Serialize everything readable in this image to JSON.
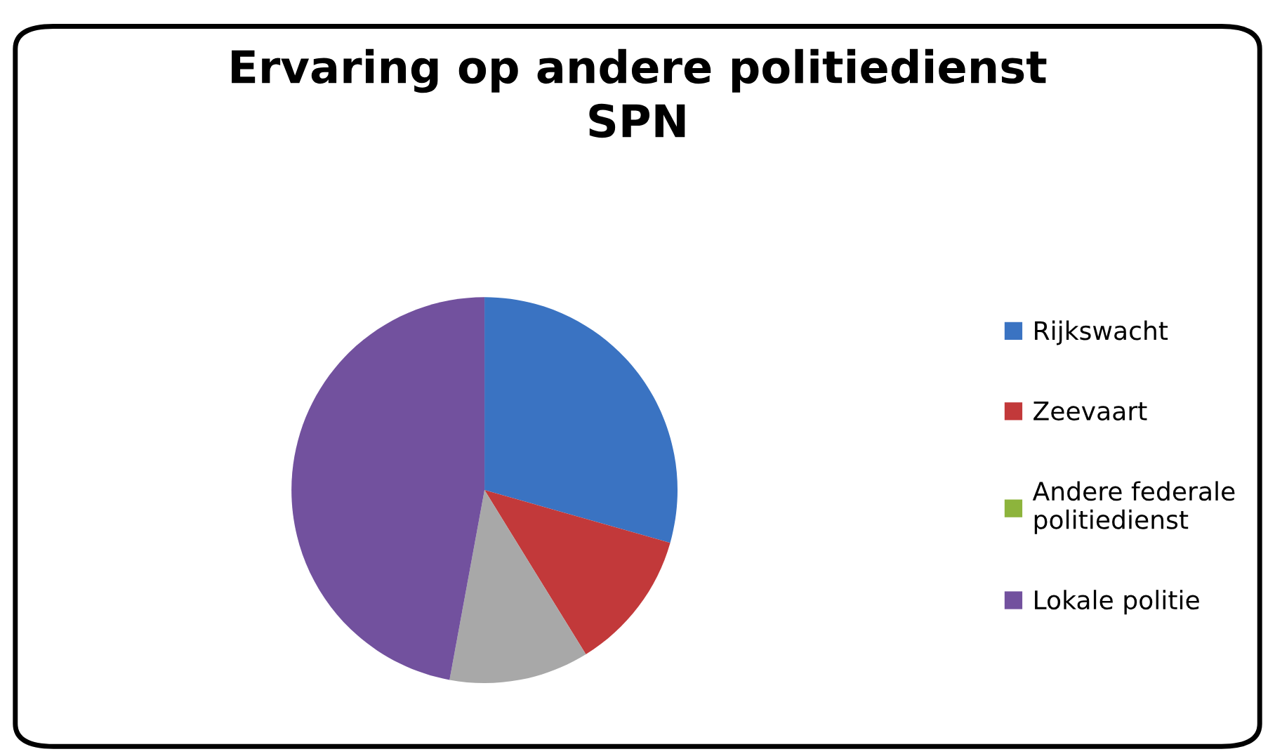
{
  "chart_data": {
    "type": "pie",
    "title": "Ervaring op andere politiedienst\nSPN",
    "categories": [
      "Rijkswacht",
      "Zeevaart",
      "Andere federale\npolitiedienst",
      null,
      "Lokale politie"
    ],
    "values": [
      29.4,
      11.8,
      0,
      11.7,
      47.1
    ],
    "colors": [
      "#3a73c2",
      "#c2393a",
      "#8db43c",
      "#a8a8a8",
      "#72519e"
    ],
    "legend": "right"
  }
}
